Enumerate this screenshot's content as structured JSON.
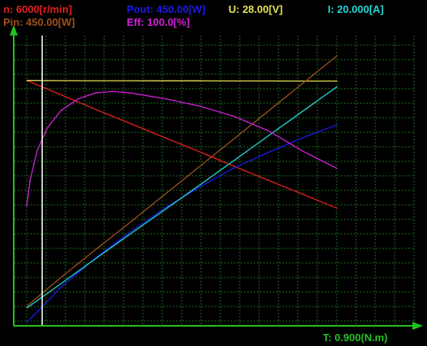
{
  "header": {
    "speed_label": "n: 6000[r/min]",
    "pout_label": "Pout: 450.00[W]",
    "voltage_label": "U: 28.00[V]",
    "current_label": "I: 20.000[A]",
    "pin_label": "Pin: 450.00[W]",
    "eff_label": "Eff: 100.0[%]"
  },
  "xaxis_label": "T: 0.900(N.m)",
  "colors": {
    "background": "#000000",
    "grid": "#1f6a1f",
    "axis": "#22c022",
    "speed": "#e02020",
    "pout": "#1a1ae6",
    "voltage": "#e6e050",
    "current": "#22d8d8",
    "pin": "#a0501a",
    "eff": "#d020d8",
    "torque_marker": "#ffffff"
  },
  "chart_data": {
    "type": "line",
    "xlabel": "T: 0.900(N.m)",
    "xlim": [
      0,
      0.9
    ],
    "grid": true,
    "series": [
      {
        "name": "n: 6000[r/min]",
        "color_key": "speed",
        "ymax": 6000,
        "x": [
          0,
          0.1,
          0.2,
          0.3,
          0.4,
          0.5,
          0.6,
          0.7,
          0.8,
          0.9
        ],
        "y": [
          5060,
          4760,
          4460,
          4170,
          3880,
          3590,
          3290,
          3000,
          2710,
          2420
        ]
      },
      {
        "name": "Pout: 450.00[W]",
        "color_key": "pout",
        "ymax": 450,
        "x": [
          0,
          0.1,
          0.2,
          0.3,
          0.4,
          0.5,
          0.6,
          0.7,
          0.8,
          0.9
        ],
        "y": [
          5,
          60,
          105,
          145,
          182,
          214,
          244,
          268,
          291,
          311
        ]
      },
      {
        "name": "U: 28.00[V]",
        "color_key": "voltage",
        "ymax": 28,
        "x": [
          0,
          0.1,
          0.2,
          0.3,
          0.4,
          0.5,
          0.6,
          0.7,
          0.8,
          0.9
        ],
        "y": [
          23.6,
          23.58,
          23.57,
          23.57,
          23.56,
          23.56,
          23.55,
          23.55,
          23.54,
          23.54
        ]
      },
      {
        "name": "I: 20.000[A]",
        "color_key": "current",
        "ymax": 20,
        "x": [
          0,
          0.1,
          0.2,
          0.3,
          0.4,
          0.5,
          0.6,
          0.7,
          0.8,
          0.9
        ],
        "y": [
          1.22,
          2.91,
          4.62,
          6.31,
          7.98,
          9.65,
          11.35,
          13.05,
          14.75,
          16.45
        ]
      },
      {
        "name": "Pin: 450.00[W]",
        "color_key": "pin",
        "ymax": 450,
        "x": [
          0,
          0.1,
          0.2,
          0.3,
          0.4,
          0.5,
          0.6,
          0.7,
          0.8,
          0.9
        ],
        "y": [
          30,
          75,
          118,
          160,
          203,
          246,
          289,
          332,
          375,
          418
        ]
      },
      {
        "name": "Eff: 100.0[%]",
        "color_key": "eff",
        "ymax": 100,
        "x": [
          0,
          0.01,
          0.03,
          0.06,
          0.1,
          0.15,
          0.2,
          0.25,
          0.3,
          0.4,
          0.5,
          0.6,
          0.7,
          0.8,
          0.9
        ],
        "y": [
          41,
          50,
          60,
          68,
          74,
          78,
          80,
          80.5,
          80,
          78,
          75.5,
          72,
          67,
          60,
          54
        ]
      }
    ],
    "torque_marker_x": 0.045
  }
}
